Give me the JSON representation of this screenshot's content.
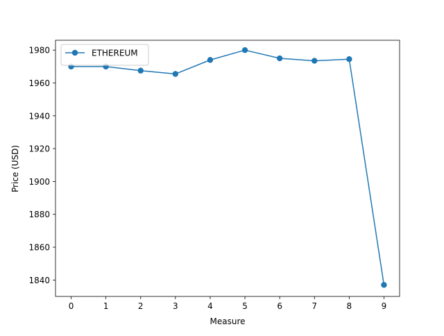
{
  "chart_data": {
    "type": "line",
    "title": "",
    "xlabel": "Measure",
    "ylabel": "Price (USD)",
    "x": [
      0,
      1,
      2,
      3,
      4,
      5,
      6,
      7,
      8,
      9
    ],
    "xlim": [
      -0.45,
      9.45
    ],
    "ylim": [
      1830,
      1986
    ],
    "xticks": [
      0,
      1,
      2,
      3,
      4,
      5,
      6,
      7,
      8,
      9
    ],
    "yticks": [
      1840,
      1860,
      1880,
      1900,
      1920,
      1940,
      1960,
      1980
    ],
    "grid": false,
    "legend_position": "upper-left",
    "series": [
      {
        "name": "ETHEREUM",
        "color": "#1f77b4",
        "marker": "circle",
        "values": [
          1970,
          1970,
          1967.5,
          1965.5,
          1974,
          1980,
          1975,
          1973.5,
          1974.5,
          1837
        ]
      }
    ]
  }
}
